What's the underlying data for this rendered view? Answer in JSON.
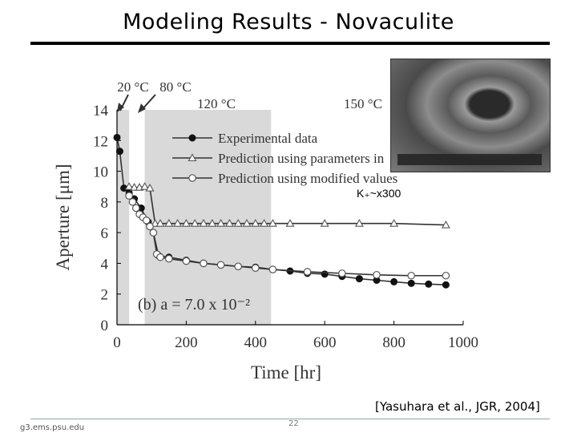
{
  "slide": {
    "title": "Modeling Results - Novaculite",
    "citation": "[Yasuhara et al., JGR, 2004]",
    "footer_source": "g3.ems.psu.edu",
    "page_number": "22",
    "photo_caption": "K₊~x300"
  },
  "chart_data": {
    "type": "scatter",
    "xlabel": "Time [hr]",
    "ylabel": "Aperture [μm]",
    "xlim": [
      0,
      1000
    ],
    "ylim": [
      0,
      14
    ],
    "xticks": [
      0,
      200,
      400,
      600,
      800,
      1000
    ],
    "yticks": [
      0,
      2,
      4,
      6,
      8,
      10,
      12,
      14
    ],
    "grid": false,
    "legend_position": "top-right",
    "panel_label": "(b) a = 7.0 x 10⁻²",
    "temperature_annotations": [
      "20 °C",
      "80 °C",
      "120 °C",
      "150 °C"
    ],
    "shaded_intervals": [
      [
        0,
        35
      ],
      [
        80,
        445
      ]
    ],
    "series": [
      {
        "name": "Experimental data",
        "marker": "filled-circle",
        "color": "#000000",
        "x": [
          0,
          8,
          20,
          35,
          50,
          70,
          90,
          105,
          120,
          150,
          200,
          250,
          300,
          350,
          400,
          450,
          500,
          550,
          600,
          650,
          700,
          750,
          800,
          850,
          900,
          950
        ],
        "y": [
          12.2,
          11.3,
          8.9,
          8.6,
          8.2,
          7.6,
          6.7,
          6.0,
          4.5,
          4.4,
          4.2,
          4.0,
          3.9,
          3.8,
          3.75,
          3.6,
          3.5,
          3.35,
          3.3,
          3.15,
          3.0,
          2.9,
          2.8,
          2.7,
          2.65,
          2.6
        ]
      },
      {
        "name": "Prediction using parameters in",
        "marker": "open-triangle",
        "color": "#000000",
        "x": [
          35,
          50,
          65,
          80,
          95,
          110,
          125,
          150,
          175,
          200,
          225,
          250,
          275,
          300,
          325,
          350,
          375,
          400,
          425,
          450,
          500,
          600,
          700,
          800,
          950
        ],
        "y": [
          9.0,
          8.95,
          8.95,
          9.0,
          8.9,
          6.6,
          6.6,
          6.6,
          6.6,
          6.6,
          6.6,
          6.6,
          6.6,
          6.6,
          6.6,
          6.6,
          6.6,
          6.6,
          6.6,
          6.6,
          6.6,
          6.6,
          6.6,
          6.6,
          6.5
        ]
      },
      {
        "name": "Prediction using modified values",
        "marker": "open-circle",
        "color": "#000000",
        "x": [
          35,
          45,
          55,
          65,
          75,
          85,
          95,
          105,
          115,
          125,
          150,
          200,
          250,
          300,
          350,
          400,
          450,
          550,
          650,
          750,
          850,
          950
        ],
        "y": [
          8.4,
          8.0,
          7.6,
          7.2,
          7.0,
          6.8,
          6.4,
          6.0,
          4.6,
          4.4,
          4.3,
          4.15,
          4.0,
          3.9,
          3.8,
          3.7,
          3.6,
          3.45,
          3.35,
          3.25,
          3.2,
          3.2
        ]
      }
    ]
  }
}
